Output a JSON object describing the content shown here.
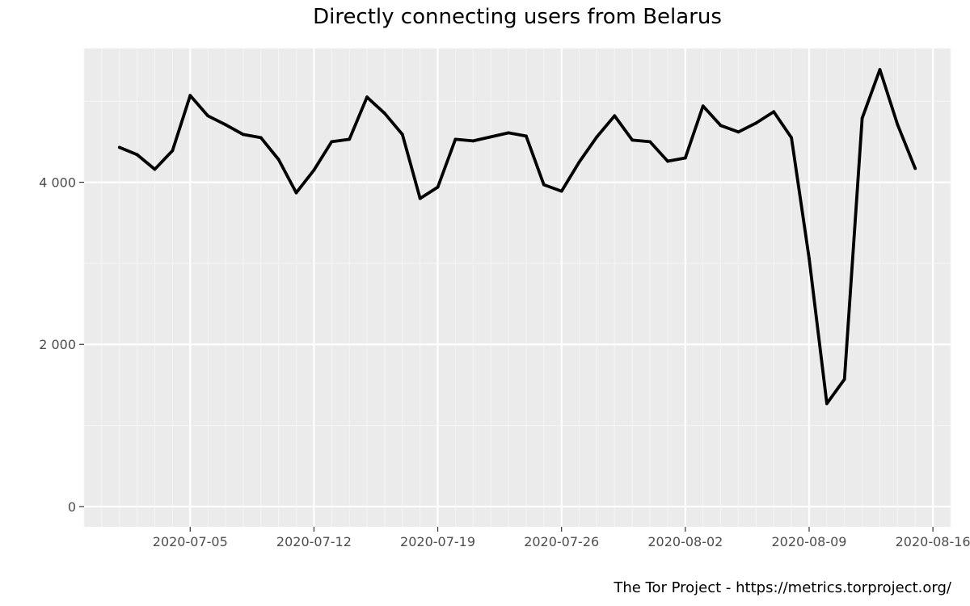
{
  "chart_data": {
    "type": "line",
    "title": "Directly connecting users from Belarus",
    "caption": "The Tor Project - https://metrics.torproject.org/",
    "xlabel": "",
    "ylabel": "",
    "x_ticks": [
      "2020-07-05",
      "2020-07-12",
      "2020-07-19",
      "2020-07-26",
      "2020-08-02",
      "2020-08-09",
      "2020-08-16"
    ],
    "y_ticks": [
      "0",
      "2 000",
      "4 000"
    ],
    "ylim": [
      -250,
      5650
    ],
    "xlim": [
      "2020-06-29",
      "2020-08-17"
    ],
    "grid": true,
    "legend": "none",
    "series": [
      {
        "color": "#000000",
        "x": [
          "2020-07-01",
          "2020-07-02",
          "2020-07-03",
          "2020-07-04",
          "2020-07-05",
          "2020-07-06",
          "2020-07-07",
          "2020-07-08",
          "2020-07-09",
          "2020-07-10",
          "2020-07-11",
          "2020-07-12",
          "2020-07-13",
          "2020-07-14",
          "2020-07-15",
          "2020-07-16",
          "2020-07-17",
          "2020-07-18",
          "2020-07-19",
          "2020-07-20",
          "2020-07-21",
          "2020-07-22",
          "2020-07-23",
          "2020-07-24",
          "2020-07-25",
          "2020-07-26",
          "2020-07-27",
          "2020-07-28",
          "2020-07-29",
          "2020-07-30",
          "2020-07-31",
          "2020-08-01",
          "2020-08-02",
          "2020-08-03",
          "2020-08-04",
          "2020-08-05",
          "2020-08-06",
          "2020-08-07",
          "2020-08-08",
          "2020-08-09",
          "2020-08-10",
          "2020-08-11",
          "2020-08-12",
          "2020-08-13",
          "2020-08-14",
          "2020-08-15"
        ],
        "values": [
          4430,
          4340,
          4160,
          4390,
          5070,
          4820,
          4710,
          4590,
          4550,
          4280,
          3870,
          4150,
          4500,
          4530,
          5050,
          4850,
          4590,
          3800,
          3940,
          4530,
          4510,
          4560,
          4610,
          4570,
          3970,
          3890,
          4250,
          4560,
          4820,
          4520,
          4500,
          4260,
          4300,
          4940,
          4700,
          4620,
          4730,
          4870,
          4550,
          3060,
          1270,
          1570,
          4790,
          5390,
          4710,
          4170
        ]
      }
    ]
  }
}
